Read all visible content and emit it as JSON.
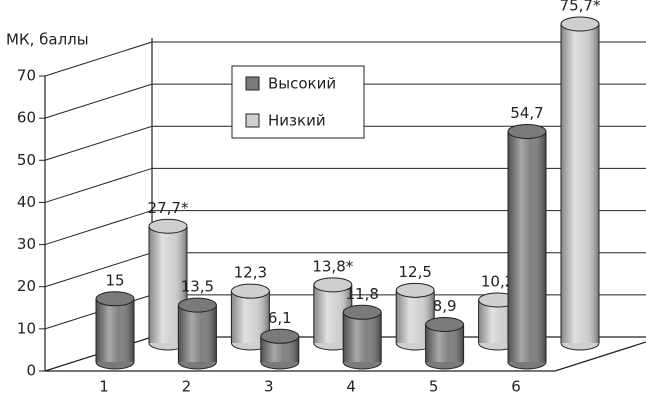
{
  "chart_data": {
    "type": "bar3d",
    "y_label": "МК, баллы",
    "categories": [
      "1",
      "2",
      "3",
      "4",
      "5",
      "6"
    ],
    "series": [
      {
        "name": "Высокий",
        "color": "#7a7a7a",
        "values": [
          15,
          13.5,
          6.1,
          11.8,
          8.9,
          54.7
        ],
        "value_labels": [
          "15",
          "13,5",
          "6,1",
          "11,8",
          "8,9",
          "54,7"
        ]
      },
      {
        "name": "Низкий",
        "color": "#cfcfcf",
        "values": [
          27.7,
          12.3,
          13.8,
          12.5,
          10.2,
          75.7
        ],
        "value_labels": [
          "27,7*",
          "12,3",
          "13,8*",
          "12,5",
          "10,2",
          "75,7*"
        ]
      }
    ],
    "ylim": [
      0,
      70
    ],
    "yticks": [
      0,
      10,
      20,
      30,
      40,
      50,
      60,
      70
    ],
    "grid": true
  }
}
